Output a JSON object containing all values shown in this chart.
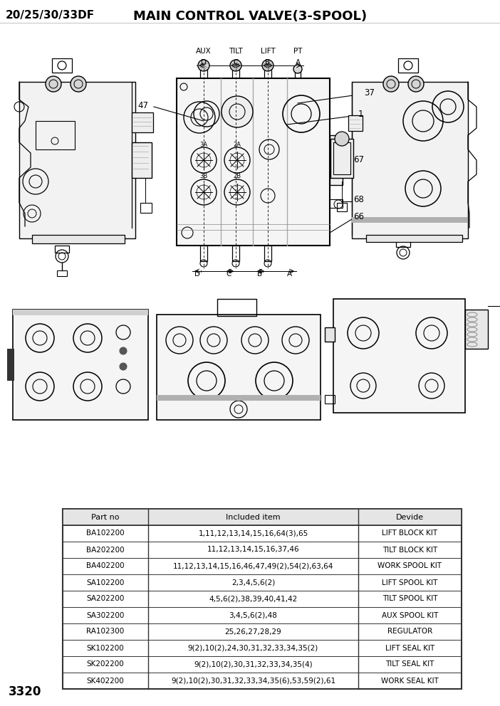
{
  "title_left": "20/25/30/33DF",
  "title_right": "MAIN CONTROL VALVE(3-SPOOL)",
  "page_number": "3320",
  "table_headers": [
    "Part no",
    "Included item",
    "Devide"
  ],
  "table_rows": [
    [
      "BA102200",
      "1,11,12,13,14,15,16,64(3),65",
      "LIFT BLOCK KIT"
    ],
    [
      "BA202200",
      "11,12,13,14,15,16,37,46",
      "TILT BLOCK KIT"
    ],
    [
      "BA402200",
      "11,12,13,14,15,16,46,47,49(2),54(2),63,64",
      "WORK SPOOL KIT"
    ],
    [
      "SA102200",
      "2,3,4,5,6(2)",
      "LIFT SPOOL KIT"
    ],
    [
      "SA202200",
      "4,5,6(2),38,39,40,41,42",
      "TILT SPOOL KIT"
    ],
    [
      "SA302200",
      "3,4,5,6(2),48",
      "AUX SPOOL KIT"
    ],
    [
      "RA102300",
      "25,26,27,28,29",
      "REGULATOR"
    ],
    [
      "SK102200",
      "9(2),10(2),24,30,31,32,33,34,35(2)",
      "LIFT SEAL KIT"
    ],
    [
      "SK202200",
      "9(2),10(2),30,31,32,33,34,35(4)",
      "TILT SEAL KIT"
    ],
    [
      "SK402200",
      "9(2),10(2),30,31,32,33,34,35(6),53,59(2),61",
      "WORK SEAL KIT"
    ]
  ],
  "background_color": "#ffffff",
  "line_color": "#000000",
  "gray_color": "#aaaaaa",
  "mid_gray": "#888888",
  "dark_gray": "#555555"
}
